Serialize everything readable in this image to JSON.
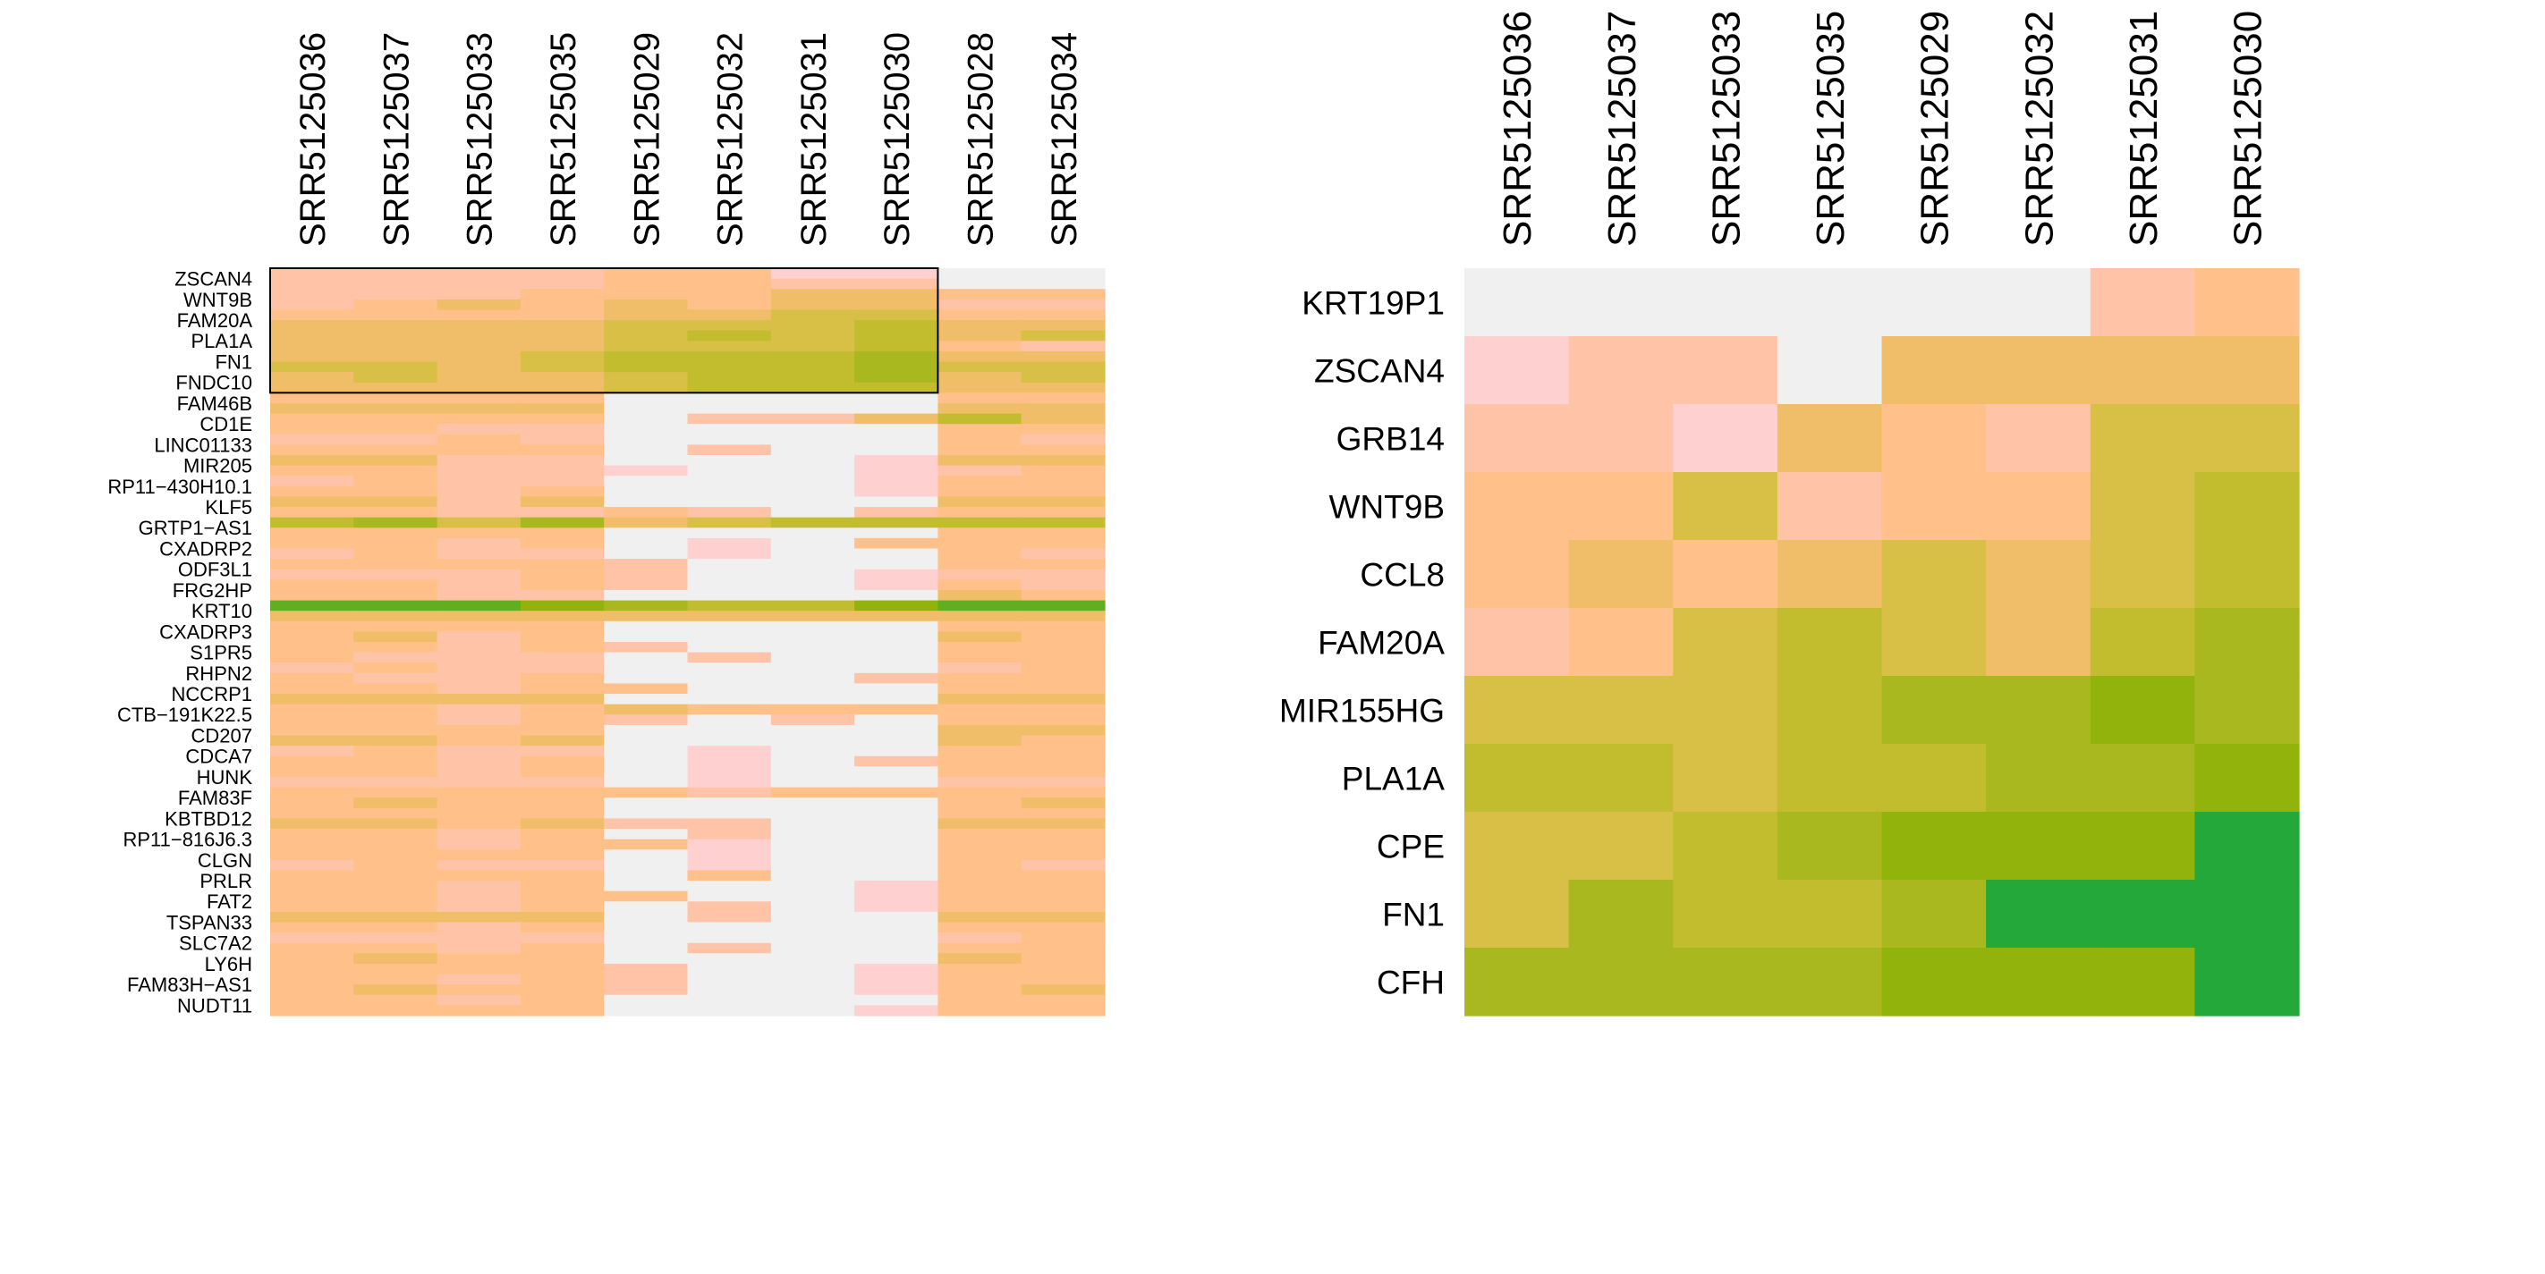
{
  "chart_data": [
    {
      "type": "heatmap",
      "title": "",
      "columns": [
        "SRR5125036",
        "SRR5125037",
        "SRR5125033",
        "SRR5125035",
        "SRR5125029",
        "SRR5125032",
        "SRR5125031",
        "SRR5125030",
        "SRR5125028",
        "SRR5125034"
      ],
      "row_labels": [
        "ZSCAN4",
        "WNT9B",
        "FAM20A",
        "PLA1A",
        "FN1",
        "FNDC10",
        "FAM46B",
        "CD1E",
        "LINC01133",
        "MIR205",
        "RP11−430H10.1",
        "KLF5",
        "GRTP1−AS1",
        "CXADRP2",
        "ODF3L1",
        "FRG2HP",
        "KRT10",
        "CXADRP3",
        "S1PR5",
        "RHPN2",
        "NCCRP1",
        "CTB−191K22.5",
        "CD207",
        "CDCA7",
        "HUNK",
        "FAM83F",
        "KBTBD12",
        "RP11−816J6.3",
        "CLGN",
        "PRLR",
        "FAT2",
        "TSPAN33",
        "SLC7A2",
        "LY6H",
        "FAM83H−AS1",
        "NUDT11"
      ],
      "n_rows": 72,
      "value_scale": "0 = not detected (grey), 1 (light pink) to 10 (dark green)",
      "highlight": {
        "first_row": 0,
        "last_row": 11,
        "first_column": 0,
        "last_column": 7
      },
      "values": [
        [
          2,
          2,
          2,
          2,
          3,
          3,
          1,
          1,
          0,
          0
        ],
        [
          2,
          2,
          2,
          2,
          3,
          3,
          2,
          2,
          0,
          0
        ],
        [
          2,
          2,
          2,
          3,
          3,
          3,
          4,
          4,
          3,
          3
        ],
        [
          2,
          3,
          4,
          3,
          4,
          3,
          4,
          4,
          2,
          2
        ],
        [
          3,
          3,
          3,
          3,
          4,
          4,
          5,
          5,
          3,
          3
        ],
        [
          4,
          4,
          4,
          4,
          5,
          5,
          5,
          6,
          4,
          4
        ],
        [
          4,
          4,
          4,
          4,
          5,
          6,
          5,
          6,
          4,
          5
        ],
        [
          4,
          4,
          4,
          4,
          5,
          5,
          5,
          6,
          3,
          2
        ],
        [
          4,
          4,
          4,
          5,
          6,
          6,
          6,
          7,
          4,
          4
        ],
        [
          5,
          5,
          4,
          5,
          6,
          6,
          6,
          7,
          5,
          5
        ],
        [
          4,
          5,
          4,
          4,
          5,
          6,
          6,
          7,
          4,
          5
        ],
        [
          4,
          4,
          4,
          4,
          5,
          6,
          6,
          6,
          4,
          4
        ],
        [
          3,
          3,
          3,
          3,
          0,
          0,
          0,
          0,
          3,
          3
        ],
        [
          4,
          4,
          4,
          4,
          0,
          0,
          0,
          0,
          4,
          4
        ],
        [
          3,
          3,
          3,
          3,
          0,
          2,
          2,
          4,
          6,
          4
        ],
        [
          3,
          3,
          2,
          2,
          0,
          0,
          0,
          0,
          3,
          3
        ],
        [
          2,
          2,
          3,
          2,
          0,
          0,
          0,
          0,
          3,
          2
        ],
        [
          3,
          3,
          3,
          3,
          0,
          2,
          0,
          0,
          3,
          3
        ],
        [
          4,
          4,
          2,
          2,
          0,
          0,
          0,
          1,
          4,
          4
        ],
        [
          3,
          3,
          2,
          2,
          1,
          0,
          0,
          1,
          2,
          3
        ],
        [
          2,
          3,
          2,
          2,
          0,
          0,
          0,
          1,
          3,
          3
        ],
        [
          3,
          3,
          2,
          3,
          0,
          0,
          0,
          1,
          3,
          3
        ],
        [
          4,
          4,
          2,
          4,
          0,
          0,
          0,
          0,
          4,
          4
        ],
        [
          3,
          3,
          2,
          2,
          3,
          2,
          0,
          2,
          3,
          3
        ],
        [
          6,
          7,
          5,
          7,
          4,
          5,
          6,
          6,
          6,
          6
        ],
        [
          3,
          3,
          3,
          3,
          0,
          0,
          0,
          0,
          3,
          3
        ],
        [
          3,
          3,
          2,
          3,
          0,
          1,
          0,
          3,
          3,
          3
        ],
        [
          2,
          3,
          2,
          2,
          0,
          1,
          0,
          0,
          3,
          2
        ],
        [
          3,
          3,
          3,
          3,
          2,
          0,
          0,
          0,
          3,
          3
        ],
        [
          2,
          2,
          2,
          3,
          2,
          0,
          0,
          1,
          2,
          2
        ],
        [
          3,
          3,
          2,
          3,
          2,
          0,
          0,
          1,
          3,
          2
        ],
        [
          3,
          3,
          2,
          2,
          0,
          0,
          0,
          0,
          4,
          3
        ],
        [
          9,
          9,
          9,
          8,
          7,
          6,
          6,
          8,
          9,
          9
        ],
        [
          4,
          4,
          4,
          4,
          4,
          4,
          4,
          4,
          4,
          4
        ],
        [
          3,
          3,
          3,
          3,
          0,
          0,
          0,
          0,
          3,
          3
        ],
        [
          3,
          4,
          2,
          3,
          0,
          0,
          0,
          0,
          4,
          3
        ],
        [
          3,
          3,
          2,
          3,
          2,
          0,
          0,
          0,
          3,
          3
        ],
        [
          3,
          2,
          2,
          2,
          0,
          2,
          0,
          0,
          3,
          3
        ],
        [
          2,
          3,
          2,
          2,
          0,
          0,
          0,
          0,
          2,
          3
        ],
        [
          3,
          2,
          2,
          3,
          0,
          0,
          0,
          2,
          3,
          3
        ],
        [
          3,
          3,
          2,
          3,
          3,
          0,
          0,
          0,
          3,
          3
        ],
        [
          4,
          4,
          4,
          4,
          0,
          0,
          0,
          0,
          4,
          4
        ],
        [
          3,
          3,
          2,
          3,
          4,
          3,
          3,
          3,
          3,
          3
        ],
        [
          3,
          3,
          2,
          3,
          2,
          0,
          2,
          0,
          3,
          3
        ],
        [
          3,
          3,
          3,
          3,
          0,
          0,
          0,
          0,
          4,
          4
        ],
        [
          4,
          4,
          3,
          4,
          0,
          0,
          0,
          0,
          4,
          3
        ],
        [
          2,
          3,
          2,
          2,
          0,
          1,
          0,
          0,
          3,
          3
        ],
        [
          3,
          3,
          2,
          3,
          0,
          1,
          0,
          2,
          3,
          3
        ],
        [
          3,
          3,
          2,
          3,
          0,
          1,
          0,
          0,
          3,
          3
        ],
        [
          2,
          2,
          2,
          2,
          0,
          1,
          0,
          0,
          2,
          2
        ],
        [
          3,
          3,
          3,
          3,
          3,
          2,
          3,
          3,
          3,
          3
        ],
        [
          3,
          4,
          3,
          3,
          0,
          0,
          0,
          0,
          3,
          4
        ],
        [
          3,
          3,
          3,
          3,
          0,
          0,
          0,
          0,
          3,
          3
        ],
        [
          4,
          4,
          3,
          4,
          2,
          2,
          0,
          0,
          4,
          4
        ],
        [
          3,
          3,
          2,
          3,
          0,
          2,
          0,
          0,
          3,
          3
        ],
        [
          3,
          3,
          2,
          3,
          3,
          1,
          0,
          0,
          3,
          3
        ],
        [
          3,
          3,
          3,
          3,
          0,
          1,
          0,
          0,
          3,
          3
        ],
        [
          2,
          3,
          2,
          2,
          0,
          1,
          0,
          0,
          3,
          2
        ],
        [
          3,
          3,
          3,
          3,
          0,
          3,
          0,
          0,
          3,
          3
        ],
        [
          3,
          3,
          2,
          3,
          0,
          0,
          0,
          1,
          3,
          3
        ],
        [
          3,
          3,
          2,
          3,
          3,
          0,
          0,
          1,
          3,
          3
        ],
        [
          3,
          3,
          2,
          3,
          0,
          2,
          0,
          1,
          3,
          3
        ],
        [
          4,
          4,
          4,
          4,
          0,
          2,
          0,
          0,
          4,
          4
        ],
        [
          3,
          3,
          2,
          3,
          0,
          0,
          0,
          0,
          3,
          3
        ],
        [
          2,
          2,
          2,
          2,
          0,
          0,
          0,
          0,
          2,
          3
        ],
        [
          3,
          3,
          2,
          3,
          0,
          2,
          0,
          0,
          3,
          3
        ],
        [
          3,
          4,
          3,
          3,
          0,
          0,
          0,
          0,
          4,
          3
        ],
        [
          3,
          3,
          3,
          3,
          2,
          0,
          0,
          1,
          3,
          3
        ],
        [
          3,
          3,
          2,
          3,
          2,
          0,
          0,
          1,
          3,
          3
        ],
        [
          3,
          4,
          3,
          3,
          2,
          0,
          0,
          1,
          3,
          4
        ],
        [
          3,
          3,
          2,
          3,
          0,
          0,
          0,
          0,
          3,
          3
        ],
        [
          3,
          3,
          3,
          3,
          0,
          0,
          0,
          1,
          3,
          3
        ]
      ]
    },
    {
      "type": "heatmap",
      "title": "",
      "columns": [
        "SRR5125036",
        "SRR5125037",
        "SRR5125033",
        "SRR5125035",
        "SRR5125029",
        "SRR5125032",
        "SRR5125031",
        "SRR5125030"
      ],
      "row_labels": [
        "KRT19P1",
        "ZSCAN4",
        "GRB14",
        "WNT9B",
        "CCL8",
        "FAM20A",
        "MIR155HG",
        "PLA1A",
        "CPE",
        "FN1",
        "CFH"
      ],
      "value_scale": "0 = not detected (grey), 1 (light pink) to 10 (dark green)",
      "values": [
        [
          0,
          0,
          0,
          0,
          0,
          0,
          2,
          3
        ],
        [
          1,
          2,
          2,
          0,
          4,
          4,
          4,
          4
        ],
        [
          2,
          2,
          1,
          4,
          3,
          2,
          5,
          5
        ],
        [
          3,
          3,
          5,
          2,
          3,
          3,
          5,
          6
        ],
        [
          3,
          4,
          3,
          4,
          5,
          4,
          5,
          6
        ],
        [
          2,
          3,
          5,
          6,
          5,
          4,
          6,
          7
        ],
        [
          5,
          5,
          5,
          6,
          7,
          7,
          8,
          7
        ],
        [
          6,
          6,
          5,
          6,
          6,
          7,
          7,
          8
        ],
        [
          5,
          5,
          6,
          7,
          8,
          8,
          8,
          10
        ],
        [
          5,
          7,
          6,
          6,
          7,
          10,
          10,
          10
        ],
        [
          7,
          7,
          7,
          7,
          8,
          8,
          8,
          10
        ]
      ]
    }
  ],
  "colors": {
    "background": "#ffffff",
    "missing": "#f0f0f0",
    "highlight_border": "#000000",
    "scale": [
      "#ffd0d0",
      "#ffc4a8",
      "#ffc089",
      "#f0be68",
      "#d8bf45",
      "#c2bd2e",
      "#a9b81e",
      "#92b30b",
      "#62ae21",
      "#23a839"
    ]
  }
}
